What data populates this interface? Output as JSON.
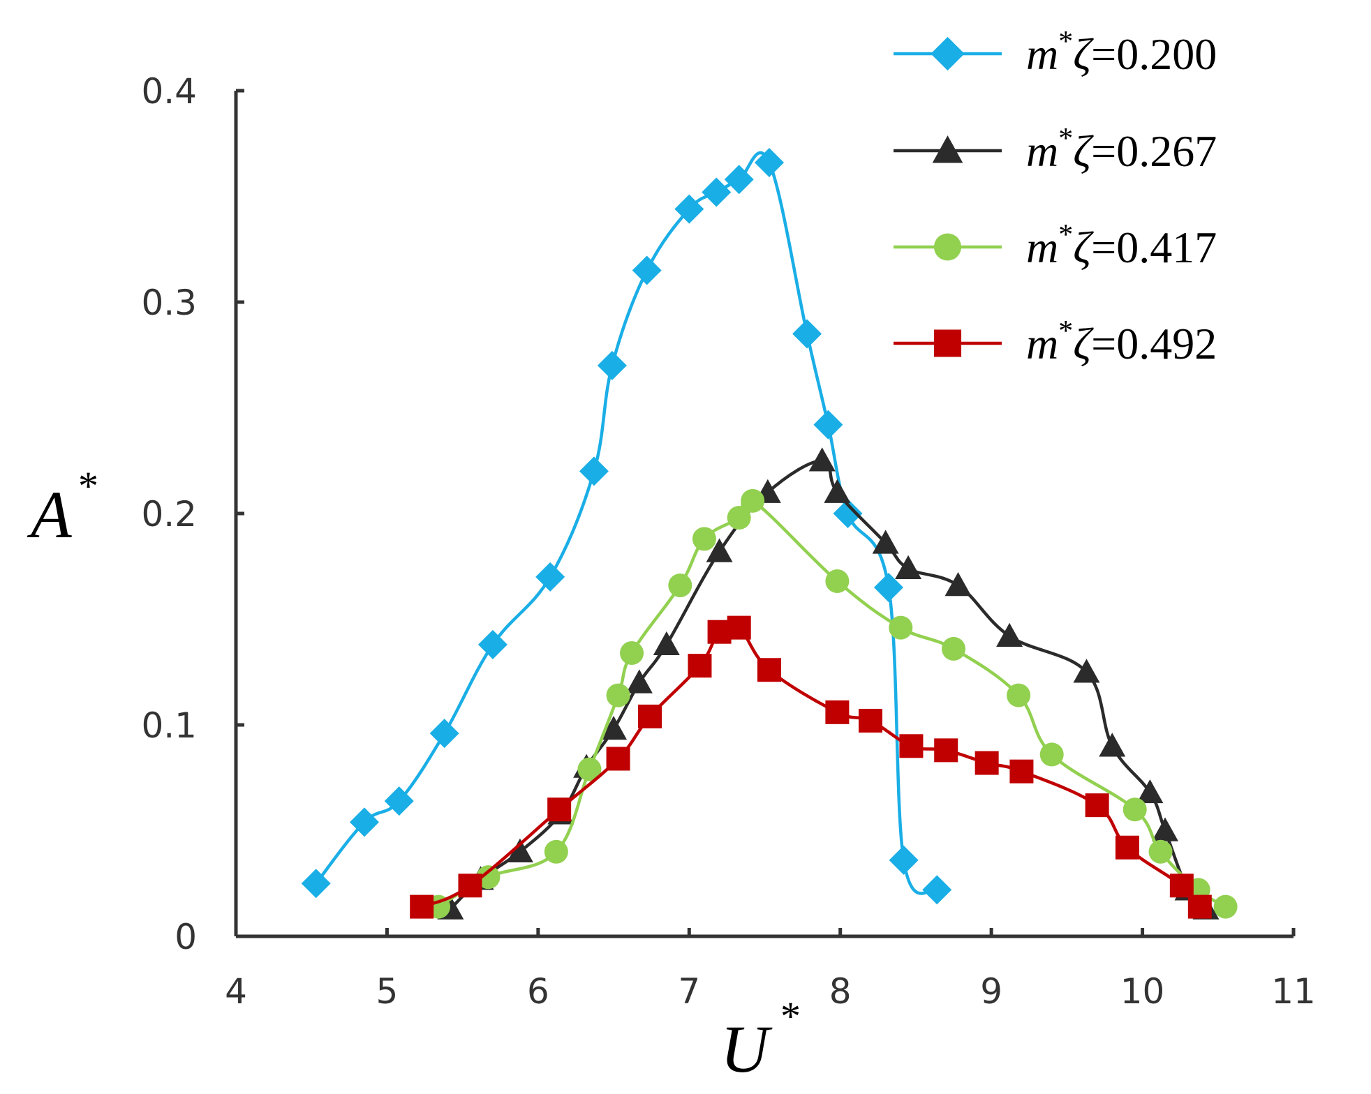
{
  "chart_data": {
    "type": "line",
    "title": "",
    "xlabel": {
      "base": "U",
      "sup": "*"
    },
    "ylabel": {
      "base": "A",
      "sup": "*"
    },
    "xlim": [
      4,
      11
    ],
    "ylim": [
      0,
      0.4
    ],
    "xticks": [
      "4",
      "5",
      "6",
      "7",
      "8",
      "9",
      "10",
      "11"
    ],
    "yticks": [
      "0",
      "0.1",
      "0.2",
      "0.3",
      "0.4"
    ],
    "grid": false,
    "legend_position": "top-right",
    "series": [
      {
        "label": {
          "m": "m",
          "star": "*",
          "zeta": "ζ",
          "value": "=0.200"
        },
        "color": "#1aaee6",
        "marker": "diamond",
        "x": [
          4.53,
          4.85,
          5.08,
          5.38,
          5.7,
          6.08,
          6.37,
          6.49,
          6.72,
          7.0,
          7.18,
          7.33,
          7.53,
          7.78,
          7.92,
          8.05,
          8.32,
          8.42,
          8.64
        ],
        "y": [
          0.025,
          0.054,
          0.064,
          0.096,
          0.138,
          0.17,
          0.22,
          0.27,
          0.315,
          0.344,
          0.352,
          0.358,
          0.366,
          0.285,
          0.242,
          0.2,
          0.165,
          0.036,
          0.022
        ]
      },
      {
        "label": {
          "m": "m",
          "star": "*",
          "zeta": "ζ",
          "value": "=0.267"
        },
        "color": "#2b2b2b",
        "marker": "triangle",
        "x": [
          5.42,
          5.62,
          5.88,
          6.15,
          6.32,
          6.5,
          6.67,
          6.85,
          7.2,
          7.52,
          7.88,
          7.98,
          8.3,
          8.45,
          8.78,
          9.12,
          9.63,
          9.8,
          10.05,
          10.15,
          10.3,
          10.42
        ],
        "y": [
          0.013,
          0.027,
          0.04,
          0.058,
          0.08,
          0.098,
          0.12,
          0.138,
          0.182,
          0.21,
          0.225,
          0.21,
          0.186,
          0.174,
          0.166,
          0.142,
          0.125,
          0.09,
          0.068,
          0.05,
          0.022,
          0.013
        ]
      },
      {
        "label": {
          "m": "m",
          "star": "*",
          "zeta": "ζ",
          "value": "=0.417"
        },
        "color": "#92d050",
        "marker": "circle",
        "x": [
          5.34,
          5.67,
          6.12,
          6.34,
          6.53,
          6.62,
          6.94,
          7.1,
          7.33,
          7.42,
          7.98,
          8.4,
          8.75,
          9.18,
          9.4,
          9.95,
          10.12,
          10.37,
          10.55
        ],
        "y": [
          0.014,
          0.028,
          0.04,
          0.079,
          0.114,
          0.134,
          0.166,
          0.188,
          0.198,
          0.206,
          0.168,
          0.146,
          0.136,
          0.114,
          0.086,
          0.06,
          0.04,
          0.022,
          0.014
        ],
        "cut": []
      },
      {
        "label": {
          "m": "m",
          "star": "*",
          "zeta": "ζ",
          "value": "=0.492"
        },
        "color": "#c00000",
        "marker": "square",
        "x": [
          5.23,
          5.55,
          6.14,
          6.53,
          6.74,
          7.07,
          7.2,
          7.33,
          7.53,
          7.98,
          8.2,
          8.47,
          8.7,
          8.97,
          9.2,
          9.7,
          9.9,
          10.26,
          10.38
        ],
        "y": [
          0.014,
          0.024,
          0.06,
          0.084,
          0.104,
          0.128,
          0.144,
          0.146,
          0.126,
          0.106,
          0.102,
          0.09,
          0.088,
          0.082,
          0.078,
          0.062,
          0.042,
          0.024,
          0.014
        ]
      }
    ]
  }
}
